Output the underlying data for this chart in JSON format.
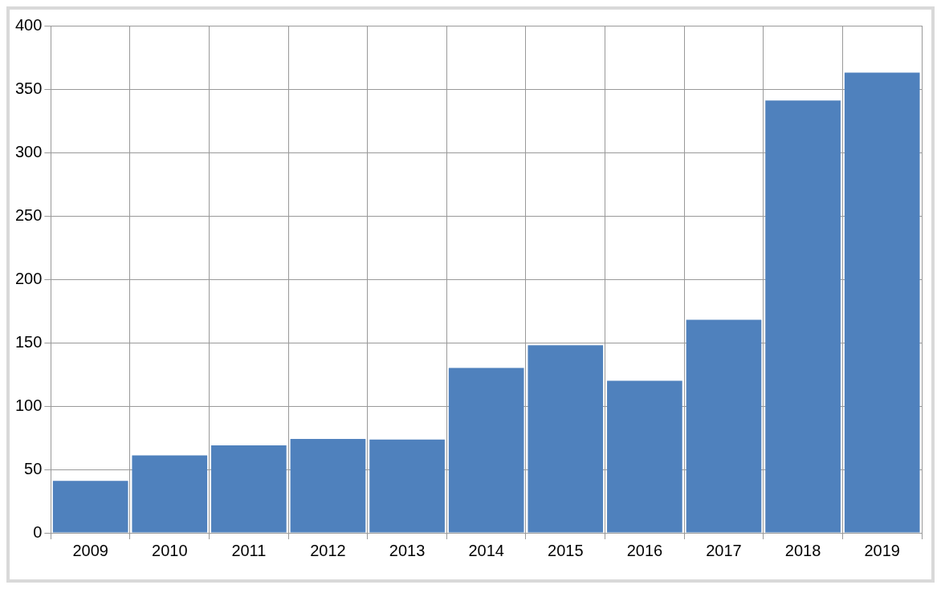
{
  "chart_data": {
    "type": "bar",
    "categories": [
      "2009",
      "2010",
      "2011",
      "2012",
      "2013",
      "2014",
      "2015",
      "2016",
      "2017",
      "2018",
      "2019"
    ],
    "values": [
      41,
      61,
      69,
      74,
      73.5,
      130,
      148,
      120,
      168,
      341,
      363
    ],
    "color": "#4f81bd",
    "ylim": [
      0,
      400
    ],
    "yticks": [
      0,
      50,
      100,
      150,
      200,
      250,
      300,
      350,
      400
    ],
    "grid": true
  }
}
